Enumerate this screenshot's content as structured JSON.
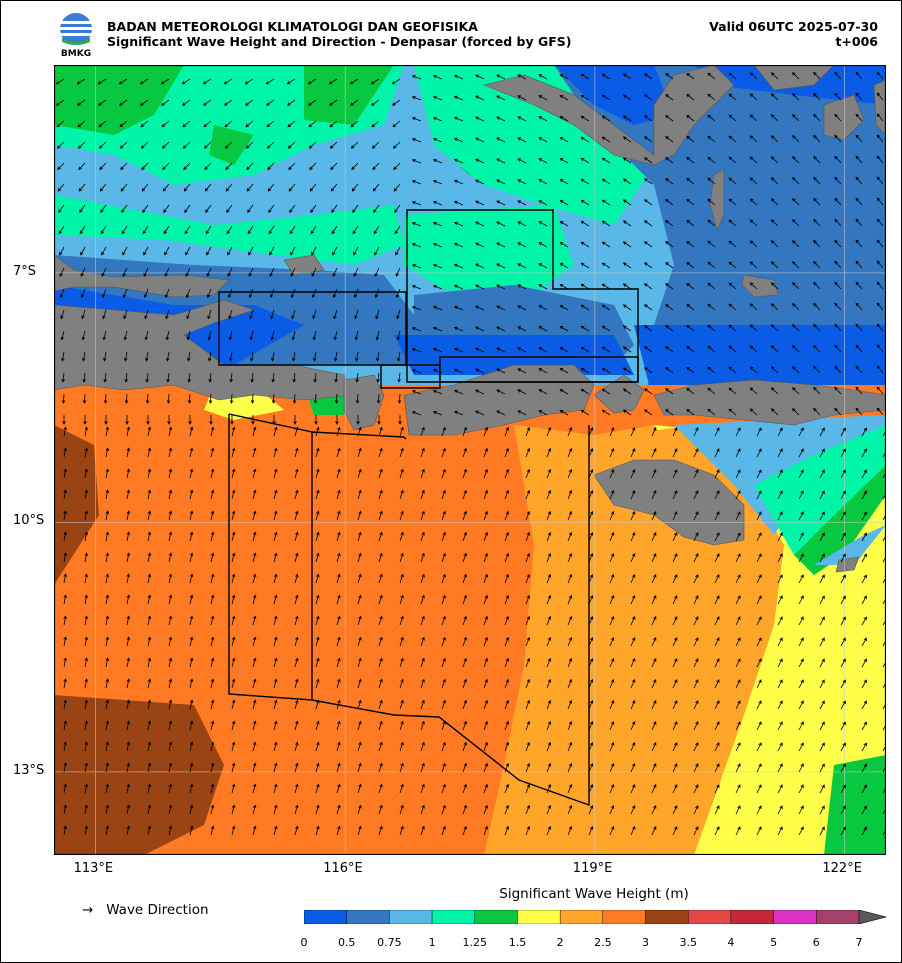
{
  "header": {
    "org": "BADAN METEOROLOGI KLIMATOLOGI DAN GEOFISIKA",
    "title": "Significant Wave Height and Direction - Denpasar (forced by GFS)",
    "valid": "Valid 06UTC 2025-07-30",
    "lead": "t+006",
    "logo_text": "BMKG"
  },
  "map": {
    "lon_range": [
      112.5,
      122.5
    ],
    "lat_range": [
      -14.0,
      -4.5
    ],
    "lon_ticks": [
      {
        "value": 113,
        "label": "113°E"
      },
      {
        "value": 116,
        "label": "116°E"
      },
      {
        "value": 119,
        "label": "119°E"
      },
      {
        "value": 122,
        "label": "122°E"
      }
    ],
    "lat_ticks": [
      {
        "value": -7,
        "label": "7°S"
      },
      {
        "value": -10,
        "label": "10°S"
      },
      {
        "value": -13,
        "label": "13°S"
      }
    ],
    "grid": true,
    "land_color": "#808080"
  },
  "legend": {
    "direction_arrow": "→",
    "direction_label": "Wave Direction",
    "colorbar_title": "Significant Wave Height (m)",
    "levels": [
      "0",
      "0.5",
      "0.75",
      "1",
      "1.25",
      "1.5",
      "2",
      "2.5",
      "3",
      "3.5",
      "4",
      "5",
      "6",
      "7"
    ],
    "colors": [
      "#0a5ce6",
      "#3377c0",
      "#5ab8e8",
      "#00f5a8",
      "#08c840",
      "#ffff4a",
      "#ffa52a",
      "#ff7a22",
      "#9a4313",
      "#e44646",
      "#c2283a",
      "#df30c4",
      "#a6406c"
    ],
    "extend_color": "#5a5a5a"
  }
}
